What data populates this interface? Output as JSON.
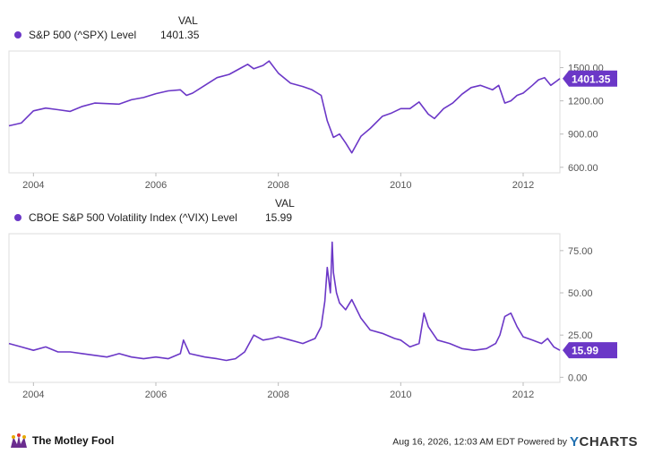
{
  "colors": {
    "series": "#6b37c7",
    "axis_text": "#555555",
    "grid": "#dddddd"
  },
  "val_header": "VAL",
  "footer": {
    "brand": "The Motley Fool",
    "brand_icon": "jester-cap-icon",
    "timestamp": "Aug 16, 2026, 12:03 AM EDT",
    "powered_by": "Powered by",
    "ycharts_y": "Y",
    "ycharts_rest": "CHARTS"
  },
  "chart_data": [
    {
      "type": "line",
      "series": [
        {
          "name": "S&P 500 (^SPX) Level",
          "current_value": "1401.35"
        }
      ],
      "current_label": "1401.35",
      "x_ticks": [
        "2004",
        "2006",
        "2008",
        "2010",
        "2012"
      ],
      "x_tick_values": [
        2004,
        2006,
        2008,
        2010,
        2012
      ],
      "xlim": [
        2003.6,
        2012.6
      ],
      "y_ticks": [
        "600.00",
        "900.00",
        "1200.00",
        "1500.00"
      ],
      "y_tick_values": [
        600,
        900,
        1200,
        1500
      ],
      "ylim": [
        550,
        1650
      ],
      "x": [
        2003.6,
        2003.8,
        2004.0,
        2004.2,
        2004.4,
        2004.6,
        2004.8,
        2005.0,
        2005.2,
        2005.4,
        2005.6,
        2005.8,
        2006.0,
        2006.2,
        2006.4,
        2006.5,
        2006.6,
        2006.8,
        2007.0,
        2007.2,
        2007.4,
        2007.5,
        2007.6,
        2007.75,
        2007.85,
        2008.0,
        2008.2,
        2008.4,
        2008.55,
        2008.7,
        2008.8,
        2008.9,
        2009.0,
        2009.1,
        2009.2,
        2009.35,
        2009.5,
        2009.7,
        2009.85,
        2010.0,
        2010.15,
        2010.3,
        2010.45,
        2010.55,
        2010.7,
        2010.85,
        2011.0,
        2011.15,
        2011.3,
        2011.5,
        2011.6,
        2011.7,
        2011.8,
        2011.9,
        2012.0,
        2012.15,
        2012.25,
        2012.35,
        2012.45,
        2012.55,
        2012.6
      ],
      "y": [
        975,
        1000,
        1110,
        1135,
        1120,
        1105,
        1150,
        1180,
        1175,
        1170,
        1210,
        1230,
        1265,
        1290,
        1300,
        1250,
        1270,
        1340,
        1410,
        1440,
        1500,
        1530,
        1490,
        1520,
        1560,
        1450,
        1360,
        1330,
        1300,
        1250,
        1020,
        870,
        900,
        820,
        730,
        880,
        950,
        1060,
        1090,
        1130,
        1130,
        1190,
        1080,
        1040,
        1130,
        1180,
        1260,
        1320,
        1340,
        1300,
        1340,
        1180,
        1200,
        1250,
        1270,
        1340,
        1390,
        1410,
        1340,
        1380,
        1401
      ]
    },
    {
      "type": "line",
      "series": [
        {
          "name": "CBOE S&P 500 Volatility Index (^VIX) Level",
          "current_value": "15.99"
        }
      ],
      "current_label": "15.99",
      "x_ticks": [
        "2004",
        "2006",
        "2008",
        "2010",
        "2012"
      ],
      "x_tick_values": [
        2004,
        2006,
        2008,
        2010,
        2012
      ],
      "xlim": [
        2003.6,
        2012.6
      ],
      "y_ticks": [
        "0.00",
        "25.00",
        "50.00",
        "75.00"
      ],
      "y_tick_values": [
        0,
        25,
        50,
        75
      ],
      "ylim": [
        -3,
        85
      ],
      "x": [
        2003.6,
        2003.8,
        2004.0,
        2004.2,
        2004.4,
        2004.6,
        2004.8,
        2005.0,
        2005.2,
        2005.4,
        2005.6,
        2005.8,
        2006.0,
        2006.2,
        2006.4,
        2006.45,
        2006.55,
        2006.8,
        2007.0,
        2007.15,
        2007.3,
        2007.45,
        2007.6,
        2007.75,
        2007.9,
        2008.0,
        2008.2,
        2008.4,
        2008.6,
        2008.7,
        2008.76,
        2008.8,
        2008.85,
        2008.88,
        2008.9,
        2008.95,
        2009.0,
        2009.1,
        2009.2,
        2009.35,
        2009.5,
        2009.7,
        2009.9,
        2010.0,
        2010.15,
        2010.3,
        2010.38,
        2010.45,
        2010.6,
        2010.8,
        2011.0,
        2011.2,
        2011.4,
        2011.55,
        2011.62,
        2011.7,
        2011.8,
        2011.9,
        2012.0,
        2012.15,
        2012.3,
        2012.4,
        2012.5,
        2012.6
      ],
      "y": [
        20,
        18,
        16,
        18,
        15,
        15,
        14,
        13,
        12,
        14,
        12,
        11,
        12,
        11,
        14,
        22,
        14,
        12,
        11,
        10,
        11,
        15,
        25,
        22,
        23,
        24,
        22,
        20,
        23,
        30,
        45,
        65,
        50,
        80,
        62,
        50,
        44,
        40,
        46,
        35,
        28,
        26,
        23,
        22,
        18,
        20,
        38,
        30,
        22,
        20,
        17,
        16,
        17,
        20,
        25,
        36,
        38,
        30,
        24,
        22,
        20,
        23,
        18,
        16
      ]
    }
  ]
}
